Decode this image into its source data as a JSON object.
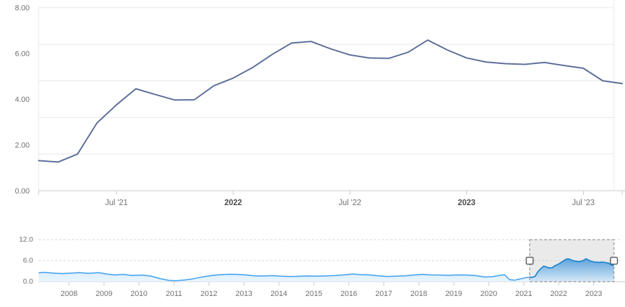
{
  "page": {
    "background": "#ffffff"
  },
  "colors": {
    "main_line": "#5b6d98",
    "grid_line": "#e7e7e7",
    "axis_line": "#c9c9c9",
    "tick_label": "#6f6f6f",
    "tick_label_bold": "#4a4a4a",
    "nav_line_out": "#47a4ef",
    "nav_fill_out_top": "#c9e4fa",
    "nav_fill_out_bottom": "#e9f5fe",
    "nav_line_in": "#2187d0",
    "nav_fill_in_top": "#5ea3da",
    "nav_fill_in_bottom": "#d7e9f7",
    "selection_bg": "#eaeaea",
    "selection_border": "#9e9e9e",
    "handle_fill": "#fbfbfb",
    "handle_border": "#616161"
  },
  "chart_data": [
    {
      "type": "line",
      "role": "main-price-chart",
      "title": "",
      "xlabel": "",
      "ylabel": "",
      "x": [
        "Mar '21",
        "Apr '21",
        "May '21",
        "Jun '21",
        "Jul '21",
        "Aug '21",
        "Sep '21",
        "Oct '21",
        "Nov '21",
        "Dec '21",
        "Jan '22",
        "Feb '22",
        "Mar '22",
        "Apr '22",
        "May '22",
        "Jun '22",
        "Jul '22",
        "Aug '22",
        "Sep '22",
        "Oct '22",
        "Nov '22",
        "Dec '22",
        "Jan '23",
        "Feb '23",
        "Mar '23",
        "Apr '23",
        "May '23",
        "Jun '23",
        "Jul '23",
        "Aug '23",
        "Sep '23"
      ],
      "values": [
        1.31,
        1.25,
        1.6,
        2.96,
        3.75,
        4.45,
        4.2,
        3.96,
        3.97,
        4.58,
        4.92,
        5.38,
        5.95,
        6.45,
        6.52,
        6.2,
        5.93,
        5.8,
        5.78,
        6.05,
        6.58,
        6.15,
        5.8,
        5.62,
        5.55,
        5.52,
        5.6,
        5.47,
        5.35,
        4.8,
        4.68
      ],
      "ylim": [
        0,
        8
      ],
      "ytick_labels": [
        "8.00",
        "6.00",
        "4.00",
        "2.00",
        "0.00"
      ],
      "ytick_values": [
        8,
        6,
        4,
        2,
        0
      ],
      "gridline_count": 6,
      "legend": "none",
      "xticks": [
        {
          "month_index": 4,
          "label": "Jul '21",
          "bold": false
        },
        {
          "month_index": 10,
          "label": "2022",
          "bold": true
        },
        {
          "month_index": 16,
          "label": "Jul '22",
          "bold": false
        },
        {
          "month_index": 22,
          "label": "2023",
          "bold": true
        },
        {
          "month_index": 28,
          "label": "Jul '23",
          "bold": false
        }
      ]
    },
    {
      "type": "area",
      "role": "navigator",
      "title": "",
      "ylim": [
        0,
        12
      ],
      "ytick_labels": [
        "12.0",
        "6.0",
        "0.0"
      ],
      "ytick_values": [
        12,
        6,
        0
      ],
      "xtick_years": [
        2008,
        2009,
        2010,
        2011,
        2012,
        2013,
        2014,
        2015,
        2016,
        2017,
        2018,
        2019,
        2020,
        2021,
        2022,
        2023
      ],
      "xtick_labels": [
        "2008",
        "2009",
        "2010",
        "2011",
        "2012",
        "2013",
        "2014",
        "2015",
        "2016",
        "2017",
        "2018",
        "2019",
        "2020",
        "2021",
        "2022",
        "2023"
      ],
      "selection": {
        "start_year": 2021.17,
        "end_year": 2023.58
      },
      "series": [
        [
          2007.13,
          2.55
        ],
        [
          2007.3,
          2.7
        ],
        [
          2007.55,
          2.45
        ],
        [
          2007.8,
          2.35
        ],
        [
          2008.05,
          2.45
        ],
        [
          2008.3,
          2.6
        ],
        [
          2008.55,
          2.4
        ],
        [
          2008.85,
          2.6
        ],
        [
          2009.05,
          2.25
        ],
        [
          2009.3,
          1.95
        ],
        [
          2009.55,
          2.1
        ],
        [
          2009.8,
          1.8
        ],
        [
          2010.1,
          1.9
        ],
        [
          2010.35,
          1.6
        ],
        [
          2010.6,
          0.9
        ],
        [
          2010.85,
          0.4
        ],
        [
          2011.05,
          0.3
        ],
        [
          2011.3,
          0.5
        ],
        [
          2011.55,
          0.85
        ],
        [
          2011.8,
          1.35
        ],
        [
          2012.05,
          1.75
        ],
        [
          2012.3,
          2.0
        ],
        [
          2012.55,
          2.15
        ],
        [
          2012.8,
          2.1
        ],
        [
          2013.05,
          1.95
        ],
        [
          2013.3,
          1.7
        ],
        [
          2013.55,
          1.65
        ],
        [
          2013.8,
          1.75
        ],
        [
          2014.05,
          1.6
        ],
        [
          2014.3,
          1.5
        ],
        [
          2014.55,
          1.55
        ],
        [
          2014.8,
          1.65
        ],
        [
          2015.05,
          1.6
        ],
        [
          2015.3,
          1.65
        ],
        [
          2015.55,
          1.75
        ],
        [
          2015.8,
          1.9
        ],
        [
          2016.1,
          2.2
        ],
        [
          2016.35,
          2.05
        ],
        [
          2016.6,
          1.95
        ],
        [
          2016.85,
          1.7
        ],
        [
          2017.1,
          1.5
        ],
        [
          2017.35,
          1.6
        ],
        [
          2017.6,
          1.7
        ],
        [
          2017.85,
          1.9
        ],
        [
          2018.1,
          2.1
        ],
        [
          2018.35,
          1.95
        ],
        [
          2018.6,
          1.9
        ],
        [
          2018.85,
          1.85
        ],
        [
          2019.1,
          1.95
        ],
        [
          2019.35,
          1.9
        ],
        [
          2019.6,
          1.8
        ],
        [
          2019.9,
          1.35
        ],
        [
          2020.1,
          1.45
        ],
        [
          2020.3,
          1.8
        ],
        [
          2020.45,
          2.0
        ],
        [
          2020.6,
          0.6
        ],
        [
          2020.75,
          0.45
        ],
        [
          2020.9,
          0.8
        ],
        [
          2021.05,
          1.15
        ],
        [
          2021.17,
          1.31
        ],
        [
          2021.25,
          1.25
        ],
        [
          2021.33,
          1.6
        ],
        [
          2021.41,
          2.96
        ],
        [
          2021.49,
          3.75
        ],
        [
          2021.57,
          4.45
        ],
        [
          2021.65,
          4.2
        ],
        [
          2021.73,
          3.96
        ],
        [
          2021.81,
          3.97
        ],
        [
          2021.89,
          4.58
        ],
        [
          2021.97,
          4.92
        ],
        [
          2022.05,
          5.38
        ],
        [
          2022.13,
          5.95
        ],
        [
          2022.21,
          6.45
        ],
        [
          2022.29,
          6.52
        ],
        [
          2022.37,
          6.2
        ],
        [
          2022.45,
          5.93
        ],
        [
          2022.54,
          5.8
        ],
        [
          2022.62,
          5.78
        ],
        [
          2022.7,
          6.05
        ],
        [
          2022.78,
          6.58
        ],
        [
          2022.86,
          6.15
        ],
        [
          2022.94,
          5.8
        ],
        [
          2023.02,
          5.62
        ],
        [
          2023.1,
          5.55
        ],
        [
          2023.18,
          5.52
        ],
        [
          2023.26,
          5.6
        ],
        [
          2023.34,
          5.47
        ],
        [
          2023.42,
          5.35
        ],
        [
          2023.5,
          4.8
        ],
        [
          2023.58,
          4.68
        ]
      ]
    }
  ]
}
